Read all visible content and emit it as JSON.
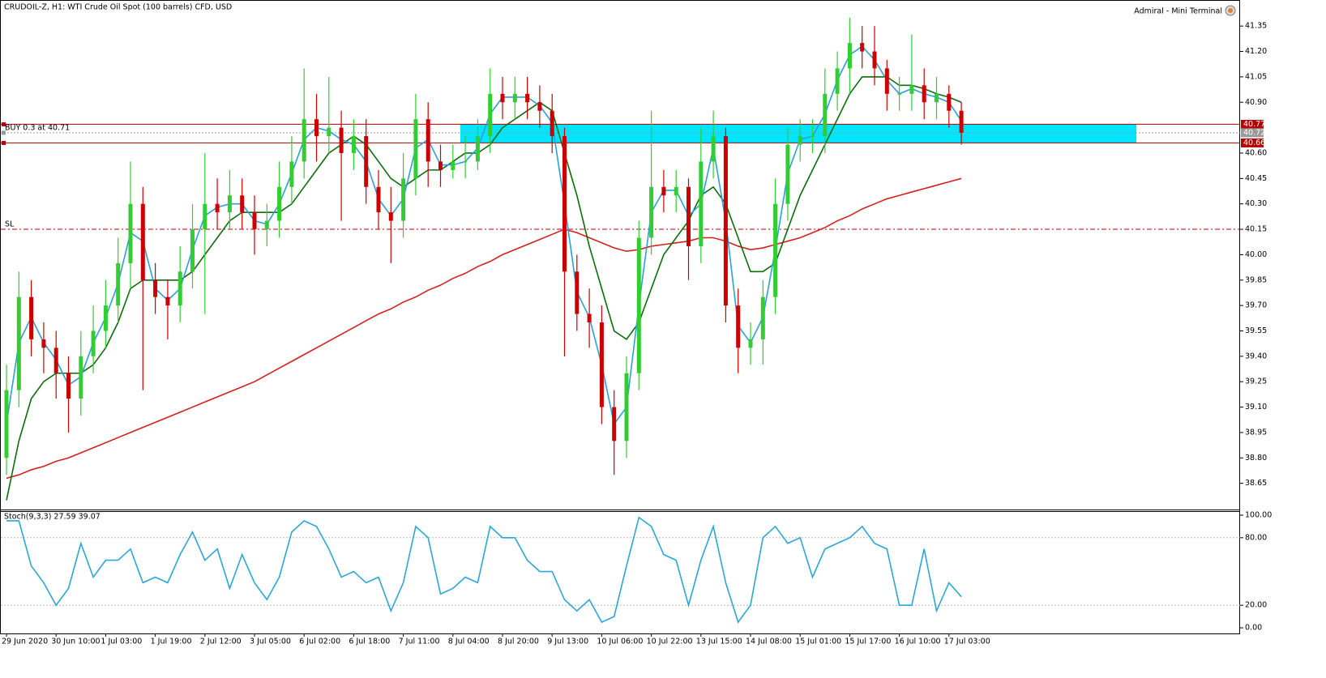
{
  "chart_data": [
    {
      "type": "candlestick",
      "title": "CRUDOIL-Z, H1:  WTI Crude Oil Spot (100 barrels) CFD, USD",
      "terminal": "Admiral - Mini Terminal",
      "categories": [
        "29 Jun 2020",
        null,
        null,
        null,
        "30 Jun 10:00",
        null,
        null,
        null,
        "1 Jul 03:00",
        null,
        null,
        null,
        "1 Jul 19:00",
        null,
        null,
        null,
        "2 Jul 12:00",
        null,
        null,
        null,
        "3 Jul 05:00",
        null,
        null,
        null,
        "6 Jul 02:00",
        null,
        null,
        null,
        "6 Jul 18:00",
        null,
        null,
        null,
        "7 Jul 11:00",
        null,
        null,
        null,
        "8 Jul 04:00",
        null,
        null,
        null,
        "8 Jul 20:00",
        null,
        null,
        null,
        "9 Jul 13:00",
        null,
        null,
        null,
        "10 Jul 06:00",
        null,
        null,
        null,
        "10 Jul 22:00",
        null,
        null,
        null,
        "13 Jul 15:00",
        null,
        null,
        null,
        "14 Jul 08:00",
        null,
        null,
        null,
        "15 Jul 01:00",
        null,
        null,
        null,
        "15 Jul 17:00",
        null,
        null,
        null,
        "16 Jul 10:00",
        null,
        null,
        null,
        "17 Jul 03:00",
        null
      ],
      "open": [
        38.8,
        39.2,
        39.75,
        39.5,
        39.45,
        39.3,
        39.15,
        39.4,
        39.55,
        39.7,
        39.95,
        40.3,
        39.85,
        39.75,
        39.7,
        39.9,
        40.15,
        40.3,
        40.25,
        40.35,
        40.25,
        40.15,
        40.2,
        40.4,
        40.55,
        40.8,
        40.7,
        40.75,
        40.6,
        40.7,
        40.4,
        40.25,
        40.2,
        40.45,
        40.8,
        40.55,
        40.5,
        40.55,
        40.55,
        40.7,
        40.95,
        40.9,
        40.95,
        40.9,
        40.85,
        40.7,
        39.9,
        39.65,
        39.6,
        39.1,
        38.9,
        39.3,
        40.1,
        40.4,
        40.35,
        40.4,
        40.05,
        40.55,
        40.7,
        39.7,
        39.45,
        39.5,
        39.75,
        40.3,
        40.65,
        40.7,
        40.7,
        40.95,
        41.1,
        41.25,
        41.2,
        41.1,
        40.95,
        40.95,
        41.0,
        40.9,
        40.95,
        40.85
      ],
      "high": [
        39.35,
        39.9,
        39.85,
        39.6,
        39.55,
        39.4,
        39.55,
        39.7,
        39.85,
        40.1,
        40.55,
        40.4,
        39.95,
        39.85,
        40.05,
        40.3,
        40.6,
        40.45,
        40.5,
        40.45,
        40.35,
        40.3,
        40.55,
        40.7,
        41.1,
        40.95,
        41.05,
        40.85,
        40.8,
        40.8,
        40.5,
        40.4,
        40.6,
        40.95,
        40.9,
        40.65,
        40.65,
        40.7,
        40.8,
        41.1,
        41.05,
        41.05,
        41.05,
        41.0,
        40.95,
        40.75,
        40.0,
        39.8,
        39.7,
        39.2,
        39.4,
        40.2,
        40.85,
        40.5,
        40.5,
        40.45,
        40.75,
        40.85,
        40.75,
        39.8,
        39.6,
        39.85,
        40.45,
        40.75,
        40.8,
        40.8,
        41.1,
        41.2,
        41.4,
        41.35,
        41.35,
        41.15,
        41.05,
        41.3,
        41.1,
        41.05,
        41.0,
        40.9
      ],
      "low": [
        38.7,
        39.1,
        39.4,
        39.3,
        39.15,
        38.95,
        39.05,
        39.3,
        39.45,
        39.6,
        39.8,
        39.2,
        39.65,
        39.5,
        39.6,
        39.8,
        39.65,
        40.15,
        40.15,
        40.15,
        40.0,
        40.05,
        40.1,
        40.3,
        40.45,
        40.55,
        40.6,
        40.2,
        40.5,
        40.3,
        40.15,
        39.95,
        40.1,
        40.35,
        40.4,
        40.4,
        40.45,
        40.45,
        40.5,
        40.6,
        40.8,
        40.8,
        40.8,
        40.75,
        40.6,
        39.4,
        39.55,
        39.45,
        39.0,
        38.7,
        38.8,
        39.2,
        40.0,
        40.25,
        40.25,
        39.85,
        39.95,
        40.45,
        39.6,
        39.3,
        39.35,
        39.35,
        39.65,
        40.2,
        40.55,
        40.6,
        40.6,
        40.85,
        40.95,
        41.1,
        41.0,
        40.85,
        40.85,
        40.85,
        40.8,
        40.8,
        40.75,
        40.65
      ],
      "close": [
        39.2,
        39.75,
        39.5,
        39.45,
        39.3,
        39.15,
        39.4,
        39.55,
        39.7,
        39.95,
        40.3,
        39.85,
        39.75,
        39.7,
        39.9,
        40.15,
        40.3,
        40.25,
        40.35,
        40.25,
        40.15,
        40.2,
        40.4,
        40.55,
        40.8,
        40.7,
        40.75,
        40.6,
        40.7,
        40.4,
        40.25,
        40.2,
        40.45,
        40.8,
        40.55,
        40.5,
        40.55,
        40.55,
        40.7,
        40.95,
        40.9,
        40.95,
        40.9,
        40.85,
        40.7,
        39.9,
        39.65,
        39.6,
        39.1,
        38.9,
        39.3,
        40.1,
        40.4,
        40.35,
        40.4,
        40.05,
        40.55,
        40.7,
        39.7,
        39.45,
        39.5,
        39.75,
        40.3,
        40.65,
        40.7,
        40.7,
        40.95,
        41.1,
        41.25,
        41.2,
        41.1,
        40.95,
        40.95,
        41.0,
        40.9,
        40.95,
        40.85,
        40.72
      ],
      "up_color": "#32cd32",
      "down_color": "#cc0000",
      "lines": [
        {
          "color": "#d42020",
          "values": [
            38.68,
            38.7,
            38.73,
            38.75,
            38.78,
            38.8,
            38.83,
            38.86,
            38.89,
            38.92,
            38.95,
            38.98,
            39.01,
            39.04,
            39.07,
            39.1,
            39.13,
            39.16,
            39.19,
            39.22,
            39.25,
            39.29,
            39.33,
            39.37,
            39.41,
            39.45,
            39.49,
            39.53,
            39.57,
            39.61,
            39.65,
            39.68,
            39.72,
            39.75,
            39.79,
            39.82,
            39.86,
            39.89,
            39.93,
            39.96,
            40.0,
            40.03,
            40.06,
            40.09,
            40.12,
            40.15,
            40.13,
            40.1,
            40.07,
            40.04,
            40.02,
            40.03,
            40.05,
            40.06,
            40.07,
            40.08,
            40.1,
            40.1,
            40.08,
            40.05,
            40.03,
            40.04,
            40.06,
            40.08,
            40.1,
            40.13,
            40.16,
            40.2,
            40.23,
            40.27,
            40.3,
            40.33,
            40.35,
            40.37,
            40.39,
            40.41,
            40.43,
            40.45
          ]
        },
        {
          "color": "#0b6e0b",
          "values": [
            38.55,
            38.9,
            39.15,
            39.25,
            39.3,
            39.3,
            39.3,
            39.35,
            39.45,
            39.6,
            39.8,
            39.85,
            39.85,
            39.85,
            39.85,
            39.9,
            40.0,
            40.1,
            40.2,
            40.25,
            40.25,
            40.25,
            40.25,
            40.3,
            40.4,
            40.5,
            40.6,
            40.65,
            40.7,
            40.65,
            40.55,
            40.45,
            40.4,
            40.45,
            40.5,
            40.5,
            40.55,
            40.6,
            40.6,
            40.65,
            40.75,
            40.8,
            40.85,
            40.9,
            40.85,
            40.6,
            40.35,
            40.05,
            39.8,
            39.55,
            39.5,
            39.6,
            39.8,
            40.0,
            40.1,
            40.2,
            40.35,
            40.4,
            40.3,
            40.1,
            39.9,
            39.9,
            39.95,
            40.15,
            40.35,
            40.5,
            40.65,
            40.8,
            40.95,
            41.05,
            41.05,
            41.05,
            41.0,
            41.0,
            40.98,
            40.95,
            40.93,
            40.9
          ]
        },
        {
          "color": "#2aa0dc",
          "values": [
            39.0,
            39.48,
            39.63,
            39.48,
            39.38,
            39.23,
            39.28,
            39.48,
            39.63,
            39.83,
            40.13,
            40.08,
            39.8,
            39.73,
            39.8,
            40.03,
            40.23,
            40.28,
            40.3,
            40.3,
            40.2,
            40.18,
            40.3,
            40.48,
            40.68,
            40.75,
            40.73,
            40.68,
            40.65,
            40.55,
            40.33,
            40.23,
            40.33,
            40.63,
            40.68,
            40.53,
            40.53,
            40.55,
            40.63,
            40.83,
            40.93,
            40.93,
            40.93,
            40.88,
            40.78,
            40.3,
            39.78,
            39.63,
            39.35,
            39.0,
            39.1,
            39.7,
            40.25,
            40.38,
            40.38,
            40.23,
            40.3,
            40.63,
            40.2,
            39.58,
            39.48,
            39.63,
            40.03,
            40.48,
            40.68,
            40.7,
            40.83,
            41.03,
            41.18,
            41.23,
            41.15,
            41.03,
            40.95,
            40.98,
            40.95,
            40.93,
            40.9,
            40.79
          ]
        }
      ],
      "zone": {
        "low": 40.66,
        "high": 40.77,
        "color": "#00e5ff"
      },
      "price_levels": [
        {
          "price": 40.77,
          "color": "#b40000",
          "tag": true
        },
        {
          "price": 40.72,
          "color": "#9a9a9a",
          "dashed": true,
          "tag": true,
          "label": "BUY 0.3 at 40.71"
        },
        {
          "price": 40.66,
          "color": "#b40000",
          "tag": true
        },
        {
          "price": 40.15,
          "color": "#b40000",
          "dashed": true,
          "label": "SL"
        }
      ],
      "ylim": [
        38.5,
        41.48
      ],
      "yticks": [
        41.35,
        {
          "value": 41.2,
          "label": "41.20"
        },
        41.05,
        {
          "value": 40.9,
          "label": "40.90"
        },
        {
          "value": 40.6,
          "label": "40.60"
        },
        40.45,
        {
          "value": 40.3,
          "label": "40.30"
        },
        40.15,
        {
          "value": 40,
          "label": "40.00"
        },
        39.85,
        {
          "value": 39.7,
          "label": "39.70"
        },
        39.55,
        {
          "value": 39.4,
          "label": "39.40"
        },
        39.25,
        {
          "value": 39.1,
          "label": "39.10"
        },
        38.95,
        {
          "value": 38.8,
          "label": "38.80"
        },
        38.65
      ]
    },
    {
      "type": "line",
      "title": "Stoch(9,3,3) 27.59 39.07",
      "color": "#2aa7d6",
      "values": [
        95,
        95,
        55,
        40,
        20,
        35,
        75,
        45,
        60,
        60,
        70,
        40,
        45,
        40,
        65,
        85,
        60,
        70,
        35,
        65,
        40,
        25,
        45,
        85,
        95,
        90,
        70,
        45,
        50,
        40,
        45,
        15,
        40,
        90,
        80,
        30,
        35,
        45,
        40,
        90,
        80,
        80,
        60,
        50,
        50,
        25,
        15,
        25,
        5,
        10,
        55,
        98,
        90,
        65,
        60,
        20,
        60,
        90,
        40,
        5,
        20,
        80,
        90,
        75,
        80,
        45,
        70,
        75,
        80,
        90,
        75,
        70,
        20,
        20,
        70,
        15,
        40,
        27.59
      ],
      "levels": [
        80,
        20
      ],
      "ylim": [
        -4.3,
        103.6
      ],
      "yticks": [
        {
          "value": 100,
          "label": "100.00"
        },
        {
          "value": 80,
          "label": "80.00"
        },
        {
          "value": 20,
          "label": "20.00"
        },
        {
          "value": 0,
          "label": "0.00"
        }
      ]
    }
  ]
}
